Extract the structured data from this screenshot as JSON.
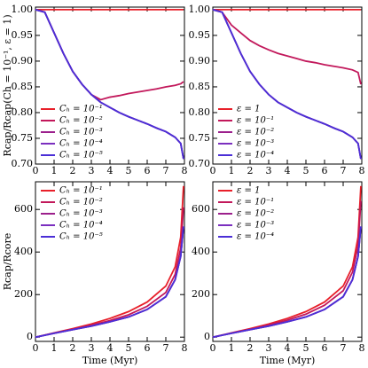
{
  "chart_data": [
    {
      "type": "line",
      "ylabel": "Rcap/Rcap(Ch = 10⁻¹, ε = 1)",
      "legend": "lower left",
      "x": [
        0,
        0.5,
        1,
        1.5,
        2,
        2.5,
        3,
        3.5,
        4,
        4.5,
        5,
        5.5,
        6,
        6.5,
        7,
        7.5,
        7.8,
        7.95
      ],
      "xlim": [
        0,
        8
      ],
      "xticks": [
        0,
        1,
        2,
        3,
        4,
        5,
        6,
        7,
        8
      ],
      "ylim": [
        0.7,
        1.005
      ],
      "yticks": [
        {
          "value": 0.7,
          "label": "0.70"
        },
        {
          "value": 0.75,
          "label": "0.75"
        },
        {
          "value": 0.8,
          "label": "0.80"
        },
        {
          "value": 0.85,
          "label": "0.85"
        },
        {
          "value": 0.9,
          "label": "0.90"
        },
        {
          "value": 0.95,
          "label": "0.95"
        },
        {
          "value": 1,
          "label": "1.00"
        }
      ],
      "series": [
        {
          "name": "Cₕ = 10⁻¹",
          "color": "#e8202a",
          "values": [
            1,
            1,
            1,
            1,
            1,
            1,
            1,
            1,
            1,
            1,
            1,
            1,
            1,
            1,
            1,
            1,
            1,
            1
          ]
        },
        {
          "name": "Cₕ = 10⁻²",
          "color": "#c2185b",
          "values": [
            1,
            0.995,
            0.955,
            0.915,
            0.88,
            0.855,
            0.835,
            0.825,
            0.83,
            0.833,
            0.837,
            0.84,
            0.843,
            0.846,
            0.85,
            0.853,
            0.856,
            0.86
          ]
        },
        {
          "name": "Cₕ = 10⁻³",
          "color": "#9c1f8c",
          "values": [
            1,
            0.995,
            0.955,
            0.915,
            0.88,
            0.855,
            0.835,
            0.82,
            0.81,
            0.8,
            0.792,
            0.785,
            0.778,
            0.77,
            0.763,
            0.752,
            0.74,
            0.71
          ]
        },
        {
          "name": "Cₕ = 10⁻⁴",
          "color": "#7b2fbf",
          "values": [
            1,
            0.995,
            0.955,
            0.915,
            0.88,
            0.855,
            0.835,
            0.82,
            0.81,
            0.8,
            0.792,
            0.785,
            0.778,
            0.77,
            0.763,
            0.752,
            0.74,
            0.71
          ]
        },
        {
          "name": "Cₕ = 10⁻⁵",
          "color": "#4b2fd6",
          "values": [
            1,
            0.995,
            0.955,
            0.915,
            0.88,
            0.855,
            0.835,
            0.82,
            0.81,
            0.8,
            0.792,
            0.785,
            0.778,
            0.77,
            0.763,
            0.752,
            0.74,
            0.71
          ]
        }
      ]
    },
    {
      "type": "line",
      "legend": "lower left",
      "x": [
        0,
        0.5,
        1,
        1.5,
        2,
        2.5,
        3,
        3.5,
        4,
        4.5,
        5,
        5.5,
        6,
        6.5,
        7,
        7.5,
        7.8,
        7.95
      ],
      "xlim": [
        0,
        8
      ],
      "xticks": [
        0,
        1,
        2,
        3,
        4,
        5,
        6,
        7,
        8
      ],
      "ylim": [
        0.7,
        1.005
      ],
      "yticks": [
        {
          "value": 0.7,
          "label": "0.70"
        },
        {
          "value": 0.75,
          "label": "0.75"
        },
        {
          "value": 0.8,
          "label": "0.80"
        },
        {
          "value": 0.85,
          "label": "0.85"
        },
        {
          "value": 0.9,
          "label": "0.90"
        },
        {
          "value": 0.95,
          "label": "0.95"
        },
        {
          "value": 1,
          "label": "1.00"
        }
      ],
      "series": [
        {
          "name": "ε = 1",
          "color": "#e8202a",
          "values": [
            1,
            1,
            1,
            1,
            1,
            1,
            1,
            1,
            1,
            1,
            1,
            1,
            1,
            1,
            1,
            1,
            1,
            1
          ]
        },
        {
          "name": "ε = 10⁻¹",
          "color": "#c2185b",
          "values": [
            1,
            0.995,
            0.97,
            0.955,
            0.94,
            0.93,
            0.922,
            0.915,
            0.91,
            0.905,
            0.9,
            0.897,
            0.893,
            0.89,
            0.887,
            0.883,
            0.878,
            0.855
          ]
        },
        {
          "name": "ε = 10⁻²",
          "color": "#9c1f8c",
          "values": [
            1,
            0.995,
            0.955,
            0.915,
            0.88,
            0.855,
            0.835,
            0.82,
            0.81,
            0.8,
            0.792,
            0.785,
            0.778,
            0.77,
            0.763,
            0.752,
            0.74,
            0.71
          ]
        },
        {
          "name": "ε = 10⁻³",
          "color": "#7b2fbf",
          "values": [
            1,
            0.995,
            0.955,
            0.915,
            0.88,
            0.855,
            0.835,
            0.82,
            0.81,
            0.8,
            0.792,
            0.785,
            0.778,
            0.77,
            0.763,
            0.752,
            0.74,
            0.71
          ]
        },
        {
          "name": "ε = 10⁻⁴",
          "color": "#4b2fd6",
          "values": [
            1,
            0.995,
            0.955,
            0.915,
            0.88,
            0.855,
            0.835,
            0.82,
            0.81,
            0.8,
            0.792,
            0.785,
            0.778,
            0.77,
            0.763,
            0.752,
            0.74,
            0.71
          ]
        }
      ]
    },
    {
      "type": "line",
      "ylabel": "Rcap/Rcore",
      "xlabel": "Time (Myr)",
      "legend": "upper left",
      "x": [
        0,
        1,
        2,
        3,
        4,
        5,
        6,
        7,
        7.5,
        7.8,
        7.95
      ],
      "xlim": [
        0,
        8
      ],
      "xticks": [
        0,
        1,
        2,
        3,
        4,
        5,
        6,
        7,
        8
      ],
      "ylim": [
        -20,
        730
      ],
      "yticks": [
        0,
        200,
        400,
        600
      ],
      "series": [
        {
          "name": "Cₕ = 10⁻¹",
          "color": "#e8202a",
          "values": [
            0,
            20,
            40,
            62,
            88,
            120,
            165,
            240,
            330,
            470,
            710
          ]
        },
        {
          "name": "Cₕ = 10⁻²",
          "color": "#c2185b",
          "values": [
            0,
            19,
            37,
            56,
            78,
            105,
            145,
            210,
            295,
            420,
            610
          ]
        },
        {
          "name": "Cₕ = 10⁻³",
          "color": "#9c1f8c",
          "values": [
            0,
            18,
            35,
            52,
            72,
            95,
            130,
            190,
            270,
            380,
            520
          ]
        },
        {
          "name": "Cₕ = 10⁻⁴",
          "color": "#7b2fbf",
          "values": [
            0,
            18,
            35,
            52,
            72,
            95,
            130,
            190,
            270,
            380,
            520
          ]
        },
        {
          "name": "Cₕ = 10⁻⁵",
          "color": "#4b2fd6",
          "values": [
            0,
            18,
            35,
            52,
            72,
            95,
            130,
            190,
            270,
            380,
            520
          ]
        }
      ]
    },
    {
      "type": "line",
      "xlabel": "Time (Myr)",
      "legend": "upper left",
      "x": [
        0,
        1,
        2,
        3,
        4,
        5,
        6,
        7,
        7.5,
        7.8,
        7.95
      ],
      "xlim": [
        0,
        8
      ],
      "xticks": [
        0,
        1,
        2,
        3,
        4,
        5,
        6,
        7,
        8
      ],
      "ylim": [
        -20,
        730
      ],
      "yticks": [
        0,
        200,
        400,
        600
      ],
      "series": [
        {
          "name": "ε = 1",
          "color": "#e8202a",
          "values": [
            0,
            20,
            40,
            62,
            88,
            120,
            165,
            240,
            330,
            470,
            710
          ]
        },
        {
          "name": "ε = 10⁻¹",
          "color": "#c2185b",
          "values": [
            0,
            19,
            37,
            57,
            80,
            108,
            150,
            218,
            305,
            430,
            640
          ]
        },
        {
          "name": "ε = 10⁻²",
          "color": "#9c1f8c",
          "values": [
            0,
            18,
            35,
            52,
            72,
            95,
            130,
            190,
            270,
            380,
            520
          ]
        },
        {
          "name": "ε = 10⁻³",
          "color": "#7b2fbf",
          "values": [
            0,
            18,
            35,
            52,
            72,
            95,
            130,
            190,
            270,
            380,
            520
          ]
        },
        {
          "name": "ε = 10⁻⁴",
          "color": "#4b2fd6",
          "values": [
            0,
            18,
            35,
            52,
            72,
            95,
            130,
            190,
            270,
            380,
            520
          ]
        }
      ]
    }
  ]
}
